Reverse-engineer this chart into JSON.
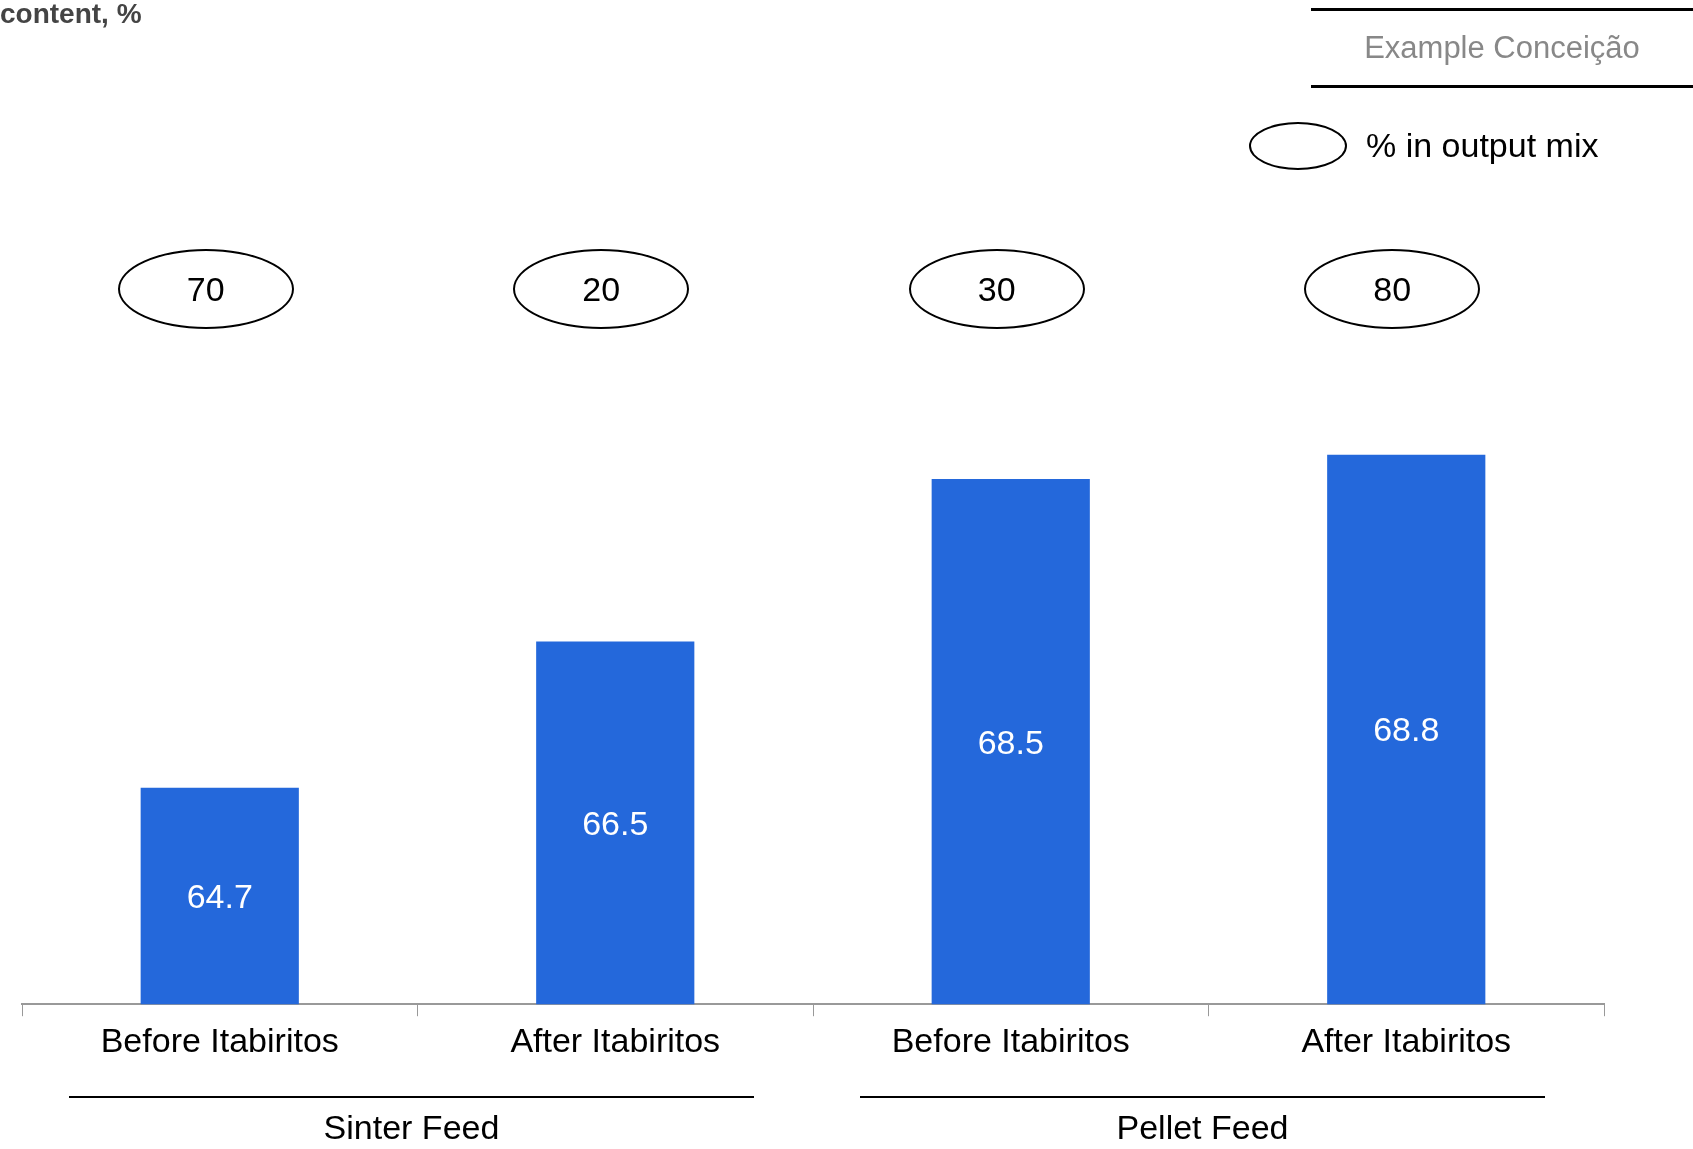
{
  "chart_data": {
    "type": "bar",
    "title": "content, %",
    "categories": [
      "Before Itabiritos",
      "After Itabiritos",
      "Before Itabiritos",
      "After Itabiritos"
    ],
    "values": [
      64.7,
      66.5,
      68.5,
      68.8
    ],
    "color": "#2468db",
    "data_labels": true,
    "tick_labels": "x",
    "grid": false,
    "annotations": [
      "Example Conceição",
      "% in output mix",
      "70",
      "20",
      "30",
      "80",
      "Sinter Feed",
      "Pellet Feed"
    ]
  }
}
